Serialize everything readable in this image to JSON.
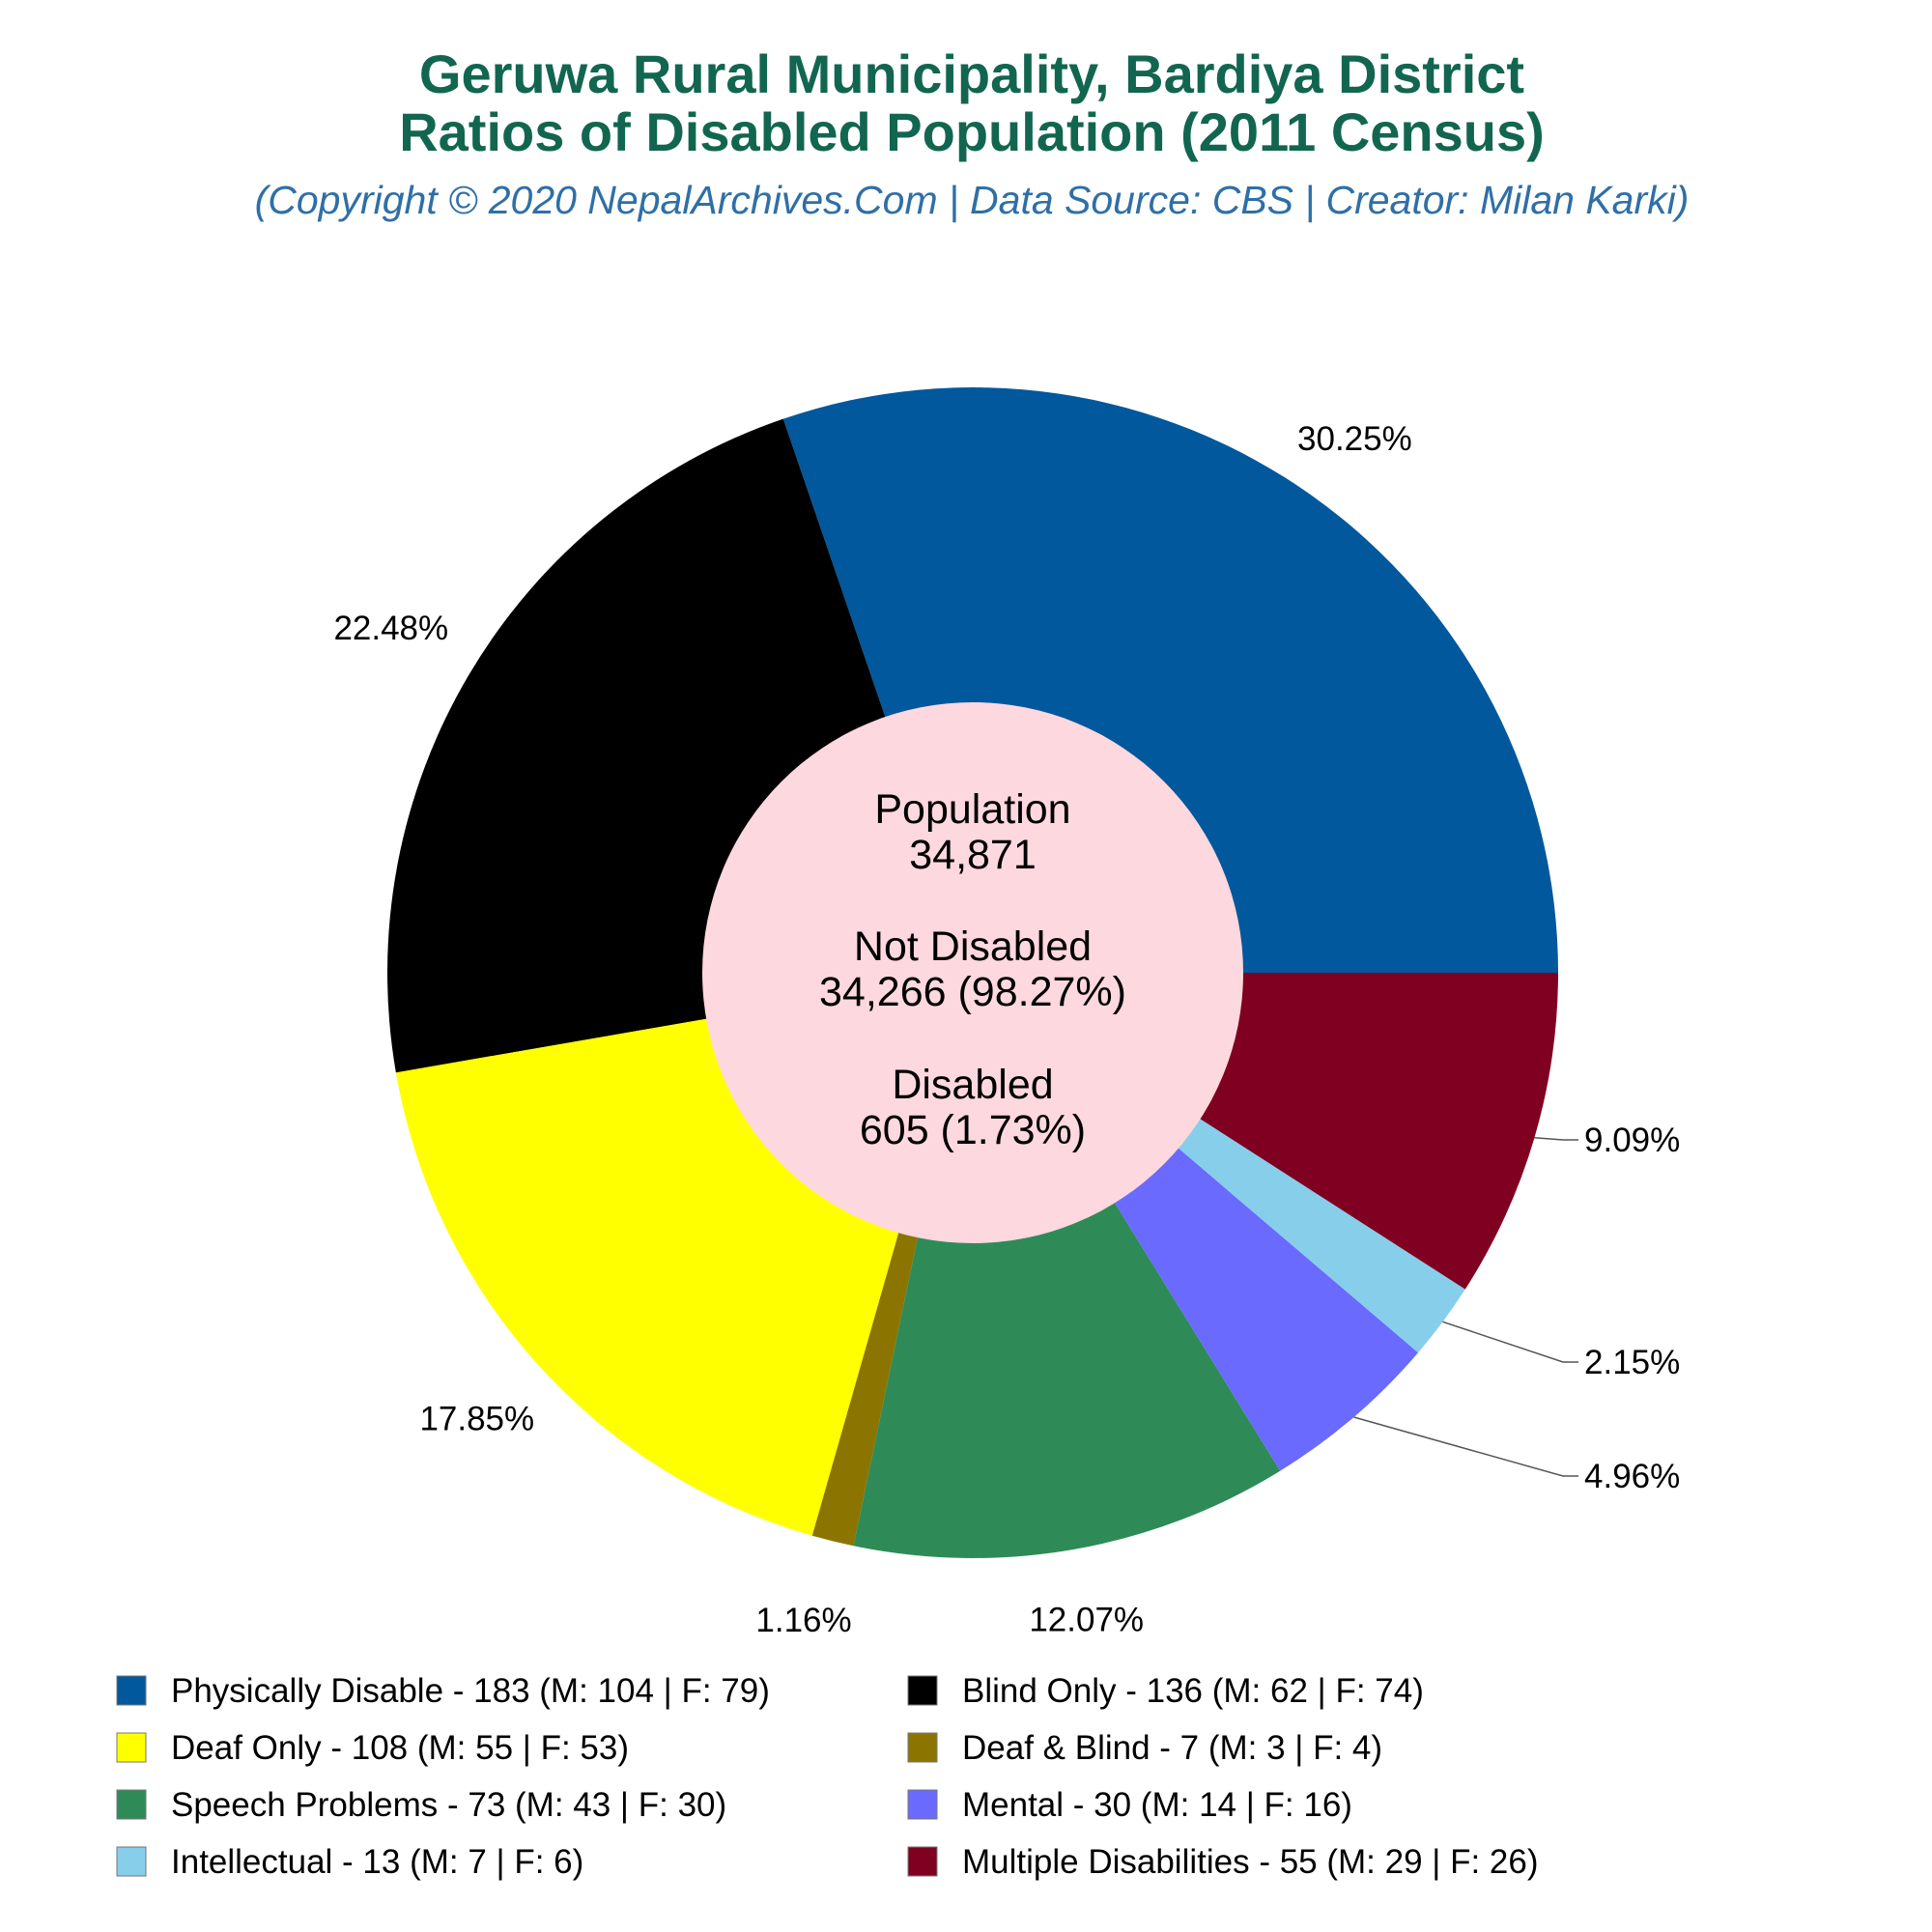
{
  "header": {
    "title_line1": "Geruwa Rural Municipality, Bardiya District",
    "title_line2": "Ratios of Disabled Population (2011 Census)",
    "subtitle": "(Copyright © 2020 NepalArchives.Com | Data Source: CBS | Creator: Milan Karki)"
  },
  "center": {
    "population_label": "Population",
    "population_value": "34,871",
    "not_disabled_label": "Not Disabled",
    "not_disabled_value": "34,266 (98.27%)",
    "disabled_label": "Disabled",
    "disabled_value": "605 (1.73%)",
    "fill": "#fdd8de"
  },
  "chart_data": {
    "type": "pie",
    "donut": true,
    "slices": [
      {
        "label": "Physically Disable",
        "value": 183,
        "pct_label": "30.25%",
        "color": "#02589c",
        "legend": "Physically Disable - 183 (M: 104 | F: 79)"
      },
      {
        "label": "Blind Only",
        "value": 136,
        "pct_label": "22.48%",
        "color": "#000000",
        "legend": "Blind Only - 136 (M: 62 | F: 74)"
      },
      {
        "label": "Deaf Only",
        "value": 108,
        "pct_label": "17.85%",
        "color": "#ffff00",
        "legend": "Deaf Only - 108 (M: 55 | F: 53)"
      },
      {
        "label": "Deaf & Blind",
        "value": 7,
        "pct_label": "1.16%",
        "color": "#8b7500",
        "legend": "Deaf & Blind - 7 (M: 3 | F: 4)"
      },
      {
        "label": "Speech Problems",
        "value": 73,
        "pct_label": "12.07%",
        "color": "#2e8b57",
        "legend": "Speech Problems - 73 (M: 43 | F: 30)"
      },
      {
        "label": "Mental",
        "value": 30,
        "pct_label": "4.96%",
        "color": "#6a6aff",
        "legend": "Mental - 30 (M: 14 | F: 16)"
      },
      {
        "label": "Intellectual",
        "value": 13,
        "pct_label": "2.15%",
        "color": "#87ceeb",
        "legend": "Intellectual - 13 (M: 7 | F: 6)"
      },
      {
        "label": "Multiple Disabilities",
        "value": 55,
        "pct_label": "9.09%",
        "color": "#7f0020",
        "legend": "Multiple Disabilities - 55 (M: 29 | F: 26)"
      }
    ]
  }
}
